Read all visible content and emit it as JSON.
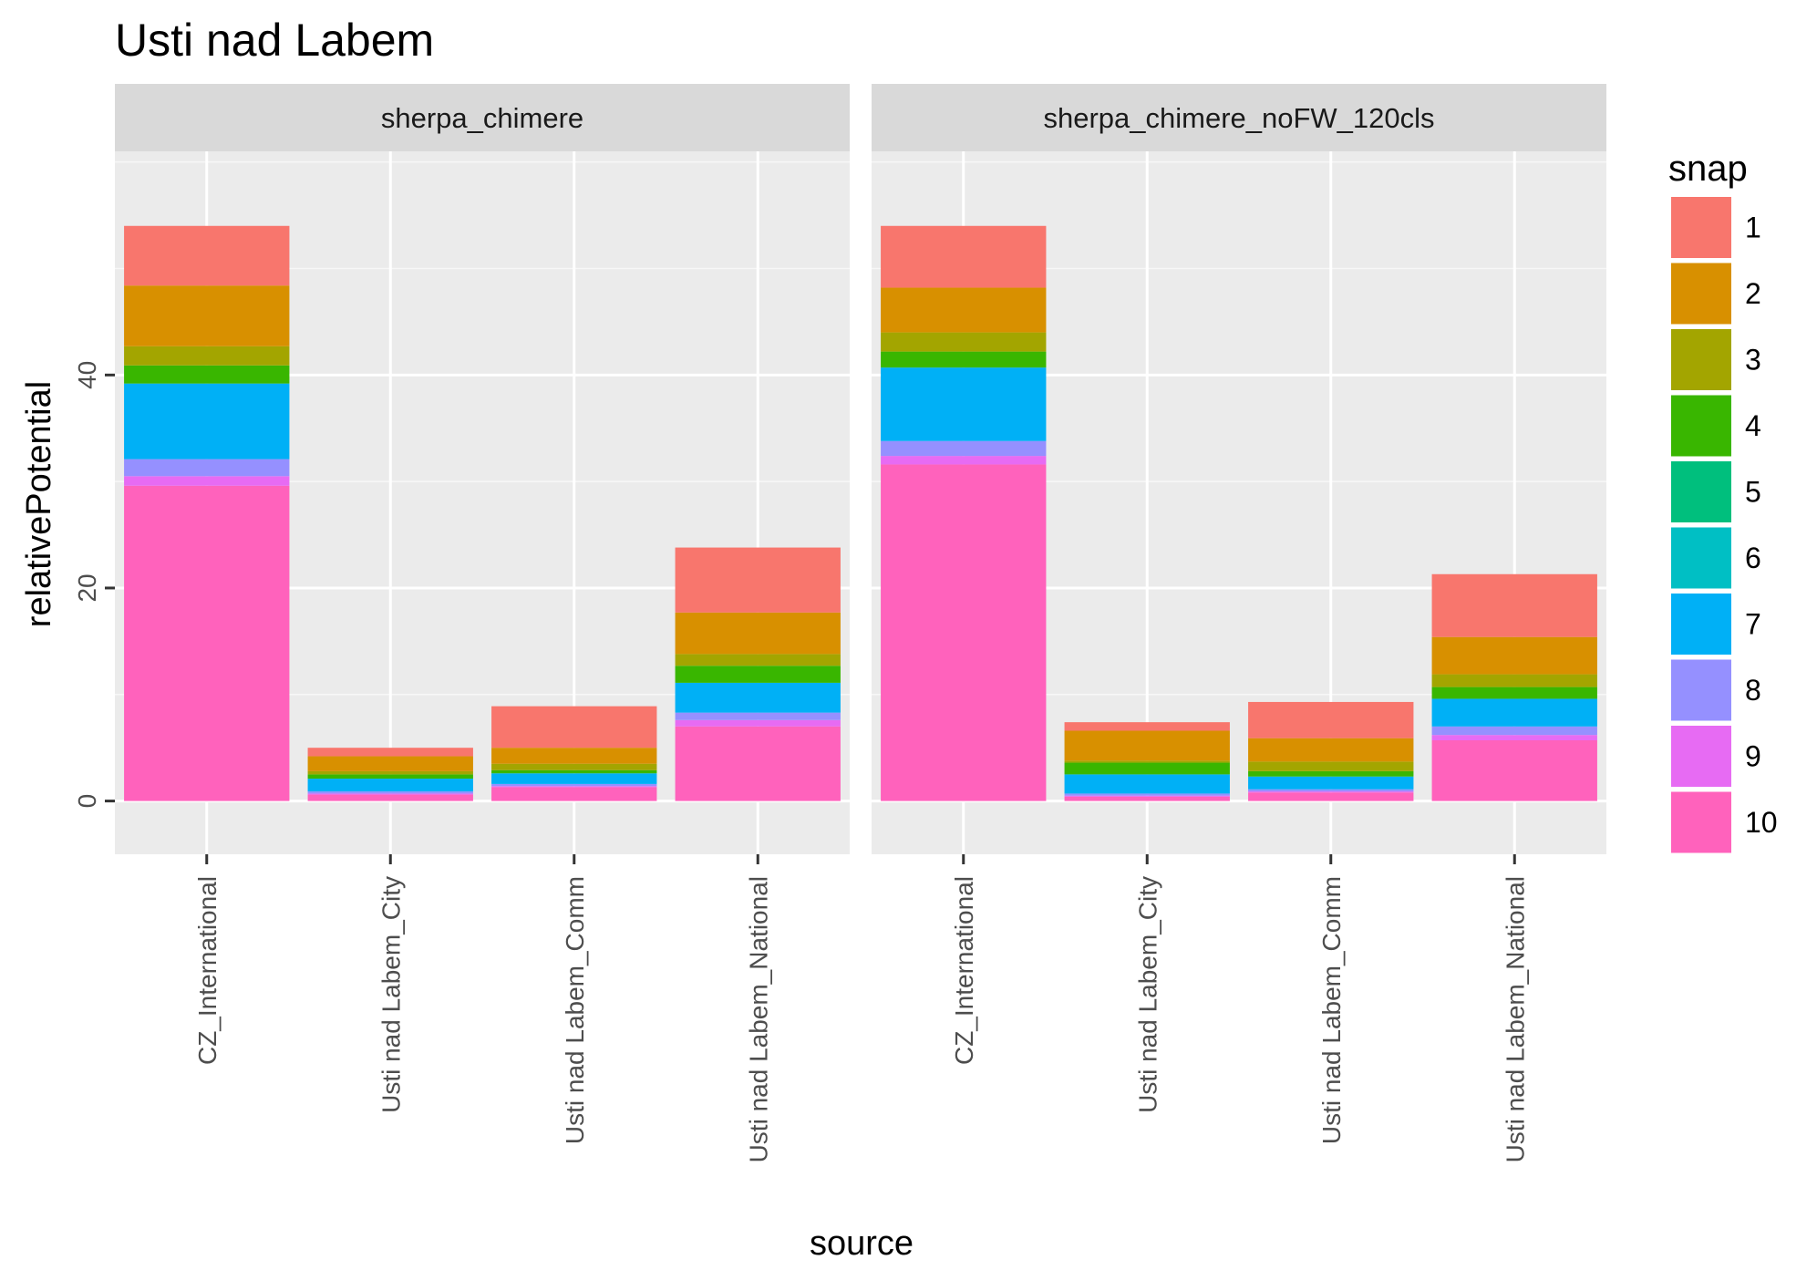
{
  "chart_data": {
    "type": "bar",
    "title": "Usti nad Labem",
    "xlabel": "source",
    "ylabel": "relativePotential",
    "ylim": [
      -5,
      61
    ],
    "yticks": [
      0,
      20,
      40
    ],
    "grid": true,
    "stacked": true,
    "categories": [
      "CZ_International",
      "Usti nad Labem_City",
      "Usti nad Labem_Comm",
      "Usti nad Labem_National"
    ],
    "legend": {
      "title": "snap",
      "position": "right",
      "entries": [
        "1",
        "2",
        "3",
        "4",
        "5",
        "6",
        "7",
        "8",
        "9",
        "10"
      ]
    },
    "colors": [
      "#F8766D",
      "#D89000",
      "#A3A500",
      "#39B600",
      "#00BF7D",
      "#00BFC4",
      "#00B0F6",
      "#9590FF",
      "#E76BF3",
      "#FF62BC"
    ],
    "panels": [
      {
        "name": "sherpa_chimere",
        "stacks": [
          [
            5.6,
            5.7,
            1.8,
            1.7,
            0.0,
            0.0,
            7.1,
            1.6,
            0.9,
            29.6
          ],
          [
            0.8,
            1.4,
            0.3,
            0.4,
            0.0,
            0.0,
            1.2,
            0.2,
            0.1,
            0.6
          ],
          [
            3.9,
            1.5,
            0.6,
            0.3,
            0.0,
            0.0,
            1.0,
            0.2,
            0.1,
            1.3
          ],
          [
            6.1,
            3.9,
            1.1,
            1.6,
            0.0,
            0.0,
            2.8,
            0.7,
            0.6,
            7.0
          ]
        ]
      },
      {
        "name": "sherpa_chimere_noFW_120cls",
        "stacks": [
          [
            5.8,
            4.2,
            1.8,
            1.5,
            0.0,
            0.0,
            6.9,
            1.4,
            0.8,
            31.6
          ],
          [
            0.8,
            2.8,
            0.2,
            1.1,
            0.0,
            0.0,
            1.8,
            0.2,
            0.1,
            0.4
          ],
          [
            3.4,
            2.2,
            0.9,
            0.5,
            0.0,
            0.0,
            1.2,
            0.2,
            0.1,
            0.8
          ],
          [
            5.9,
            3.5,
            1.2,
            1.1,
            0.0,
            0.0,
            2.6,
            0.8,
            0.5,
            5.7
          ]
        ]
      }
    ]
  }
}
